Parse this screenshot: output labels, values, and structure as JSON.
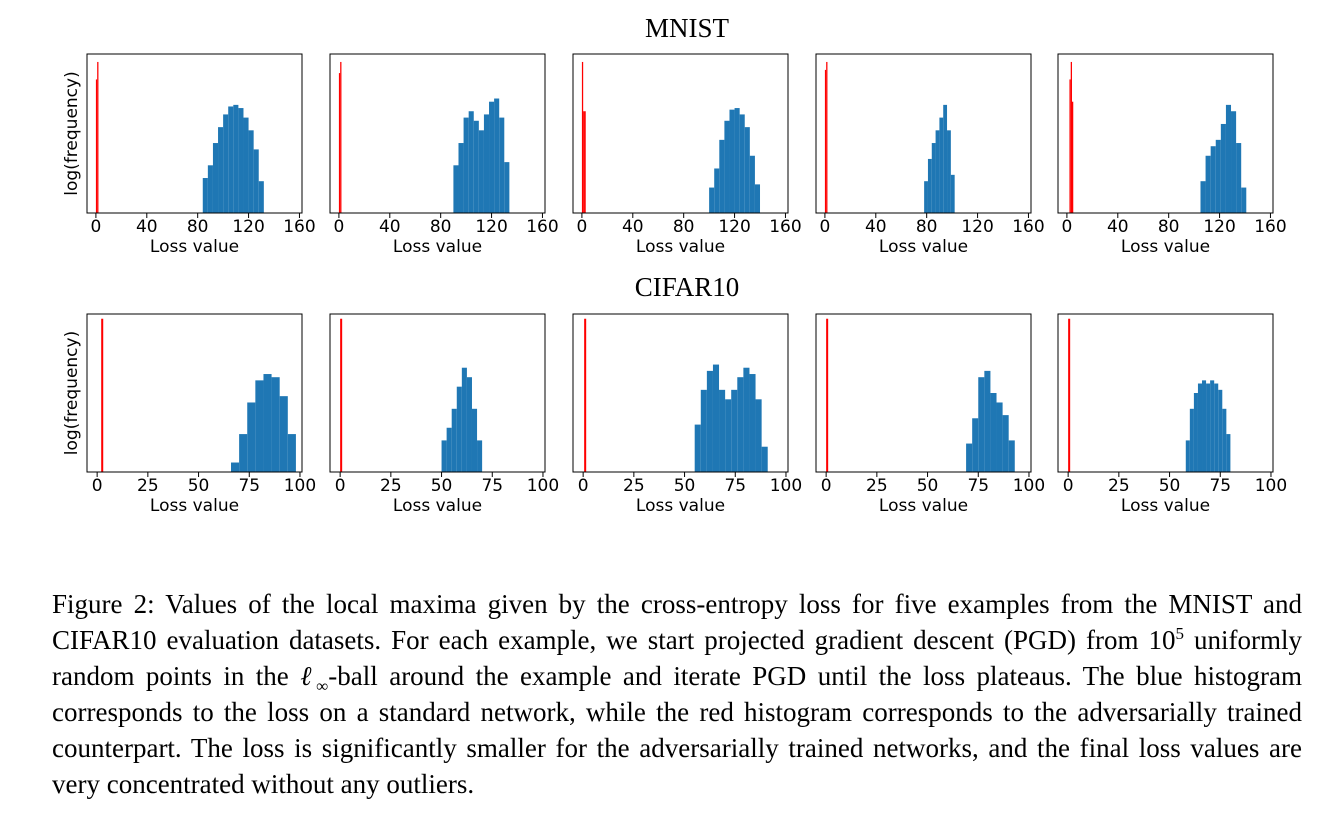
{
  "group_titles": [
    "MNIST",
    "CIFAR10"
  ],
  "chart_data": [
    {
      "type": "histogram",
      "ylabel": "log(frequency)",
      "xlabel": "Loss value",
      "xlim": [
        -7,
        162
      ],
      "ylim": [
        0,
        5
      ],
      "xticks": [
        0,
        40,
        80,
        120,
        160
      ],
      "series": [
        {
          "color": "#1f77b4",
          "bins": [
            84,
            88,
            92,
            96,
            100,
            104,
            108,
            112,
            116,
            120,
            124,
            128,
            132
          ],
          "counts": [
            1.1,
            1.5,
            2.2,
            2.7,
            3.1,
            3.35,
            3.4,
            3.3,
            3.0,
            2.6,
            2.0,
            1.0
          ]
        },
        {
          "color": "#ff0000",
          "bins": [
            0,
            1,
            2
          ],
          "counts": [
            4.2,
            4.75
          ]
        }
      ]
    },
    {
      "type": "histogram",
      "xlabel": "Loss value",
      "xlim": [
        -7,
        162
      ],
      "ylim": [
        0,
        5
      ],
      "xticks": [
        0,
        40,
        80,
        120,
        160
      ],
      "series": [
        {
          "color": "#1f77b4",
          "bins": [
            90,
            94,
            98,
            102,
            106,
            110,
            114,
            118,
            122,
            126,
            130,
            134
          ],
          "counts": [
            1.5,
            2.2,
            3.0,
            3.2,
            2.9,
            2.6,
            3.1,
            3.5,
            3.6,
            3.0,
            1.6
          ]
        },
        {
          "color": "#ff0000",
          "bins": [
            0,
            1,
            2
          ],
          "counts": [
            4.4,
            4.75
          ]
        }
      ]
    },
    {
      "type": "histogram",
      "xlabel": "Loss value",
      "xlim": [
        -7,
        162
      ],
      "ylim": [
        0,
        5
      ],
      "xticks": [
        0,
        40,
        80,
        120,
        160
      ],
      "series": [
        {
          "color": "#1f77b4",
          "bins": [
            100,
            104,
            108,
            112,
            116,
            120,
            124,
            128,
            132,
            136,
            140
          ],
          "counts": [
            0.8,
            1.4,
            2.3,
            2.9,
            3.25,
            3.3,
            3.1,
            2.7,
            1.8,
            0.9
          ]
        },
        {
          "color": "#ff0000",
          "bins": [
            0,
            1,
            2,
            3
          ],
          "counts": [
            4.75,
            3.2,
            3.2
          ]
        }
      ]
    },
    {
      "type": "histogram",
      "xlabel": "Loss value",
      "xlim": [
        -7,
        162
      ],
      "ylim": [
        0,
        5
      ],
      "xticks": [
        0,
        40,
        80,
        120,
        160
      ],
      "series": [
        {
          "color": "#1f77b4",
          "bins": [
            78,
            81,
            84,
            87,
            90,
            93,
            96,
            99,
            102
          ],
          "counts": [
            1.0,
            1.7,
            2.2,
            2.6,
            3.0,
            3.4,
            2.6,
            1.2
          ]
        },
        {
          "color": "#ff0000",
          "bins": [
            0,
            1,
            2
          ],
          "counts": [
            4.5,
            4.75
          ]
        }
      ]
    },
    {
      "type": "histogram",
      "xlabel": "Loss value",
      "xlim": [
        -7,
        162
      ],
      "ylim": [
        0,
        5
      ],
      "xticks": [
        0,
        40,
        80,
        120,
        160
      ],
      "series": [
        {
          "color": "#1f77b4",
          "bins": [
            105,
            109,
            113,
            117,
            121,
            125,
            129,
            133,
            137,
            141
          ],
          "counts": [
            1.0,
            1.8,
            2.1,
            2.3,
            2.8,
            3.4,
            3.2,
            2.2,
            0.8
          ]
        },
        {
          "color": "#ff0000",
          "bins": [
            2,
            3,
            4,
            5
          ],
          "counts": [
            4.2,
            4.75,
            3.5
          ]
        }
      ]
    },
    {
      "type": "histogram",
      "ylabel": "log(frequency)",
      "xlabel": "Loss value",
      "xlim": [
        -5,
        101
      ],
      "ylim": [
        0,
        5
      ],
      "xticks": [
        0,
        25,
        50,
        75,
        100
      ],
      "series": [
        {
          "color": "#1f77b4",
          "bins": [
            66,
            70,
            74,
            78,
            82,
            86,
            90,
            94,
            98
          ],
          "counts": [
            0.3,
            1.2,
            2.2,
            2.9,
            3.1,
            3.0,
            2.4,
            1.2
          ]
        },
        {
          "color": "#ff0000",
          "bins": [
            2,
            3
          ],
          "counts": [
            4.85
          ]
        }
      ]
    },
    {
      "type": "histogram",
      "xlabel": "Loss value",
      "xlim": [
        -5,
        101
      ],
      "ylim": [
        0,
        5
      ],
      "xticks": [
        0,
        25,
        50,
        75,
        100
      ],
      "series": [
        {
          "color": "#1f77b4",
          "bins": [
            50,
            52.5,
            55,
            57.5,
            60,
            62.5,
            65,
            67.5,
            70
          ],
          "counts": [
            1.0,
            1.4,
            2.0,
            2.7,
            3.3,
            3.0,
            2.0,
            1.0
          ]
        },
        {
          "color": "#ff0000",
          "bins": [
            0,
            1
          ],
          "counts": [
            4.85
          ]
        }
      ]
    },
    {
      "type": "histogram",
      "xlabel": "Loss value",
      "xlim": [
        -5,
        101
      ],
      "ylim": [
        0,
        5
      ],
      "xticks": [
        0,
        25,
        50,
        75,
        100
      ],
      "series": [
        {
          "color": "#1f77b4",
          "bins": [
            55,
            58,
            61,
            64,
            67,
            70,
            73,
            76,
            79,
            82,
            85,
            88,
            91
          ],
          "counts": [
            1.5,
            2.6,
            3.2,
            3.4,
            2.6,
            2.3,
            2.6,
            3.0,
            3.3,
            3.1,
            2.3,
            0.8
          ]
        },
        {
          "color": "#ff0000",
          "bins": [
            0.5,
            1.5
          ],
          "counts": [
            4.85
          ]
        }
      ]
    },
    {
      "type": "histogram",
      "xlabel": "Loss value",
      "xlim": [
        -5,
        101
      ],
      "ylim": [
        0,
        5
      ],
      "xticks": [
        0,
        25,
        50,
        75,
        100
      ],
      "series": [
        {
          "color": "#1f77b4",
          "bins": [
            69,
            72,
            75,
            78,
            81,
            84,
            87,
            90,
            93
          ],
          "counts": [
            0.9,
            1.7,
            3.0,
            3.2,
            2.5,
            2.2,
            1.8,
            1.0
          ]
        },
        {
          "color": "#ff0000",
          "bins": [
            0,
            1
          ],
          "counts": [
            4.85
          ]
        }
      ]
    },
    {
      "type": "histogram",
      "xlabel": "Loss value",
      "xlim": [
        -5,
        101
      ],
      "ylim": [
        0,
        5
      ],
      "xticks": [
        0,
        25,
        50,
        75,
        100
      ],
      "series": [
        {
          "color": "#1f77b4",
          "bins": [
            58,
            60,
            62,
            64,
            66,
            68,
            70,
            72,
            74,
            76,
            78,
            80
          ],
          "counts": [
            1.0,
            2.0,
            2.5,
            2.8,
            2.9,
            2.8,
            2.9,
            2.8,
            2.6,
            2.0,
            1.2
          ]
        },
        {
          "color": "#ff0000",
          "bins": [
            0,
            1
          ],
          "counts": [
            4.85
          ]
        }
      ]
    }
  ],
  "caption": [
    "Figure 2: Values of the local maxima given by the cross-entropy loss for five examples from the MNIST and CIFAR10 evaluation datasets. For each example, we start projected gradient descent (PGD) from ",
    "10",
    "5",
    " uniformly random points in the ",
    "ℓ",
    "∞",
    "-ball around the example and iterate PGD until the loss plateaus. The blue histogram corresponds to the loss on a standard network, while the red histogram corresponds to the adversarially trained counterpart. The loss is significantly smaller for the adversarially trained networks, and the final loss values are very concentrated without any outliers."
  ]
}
